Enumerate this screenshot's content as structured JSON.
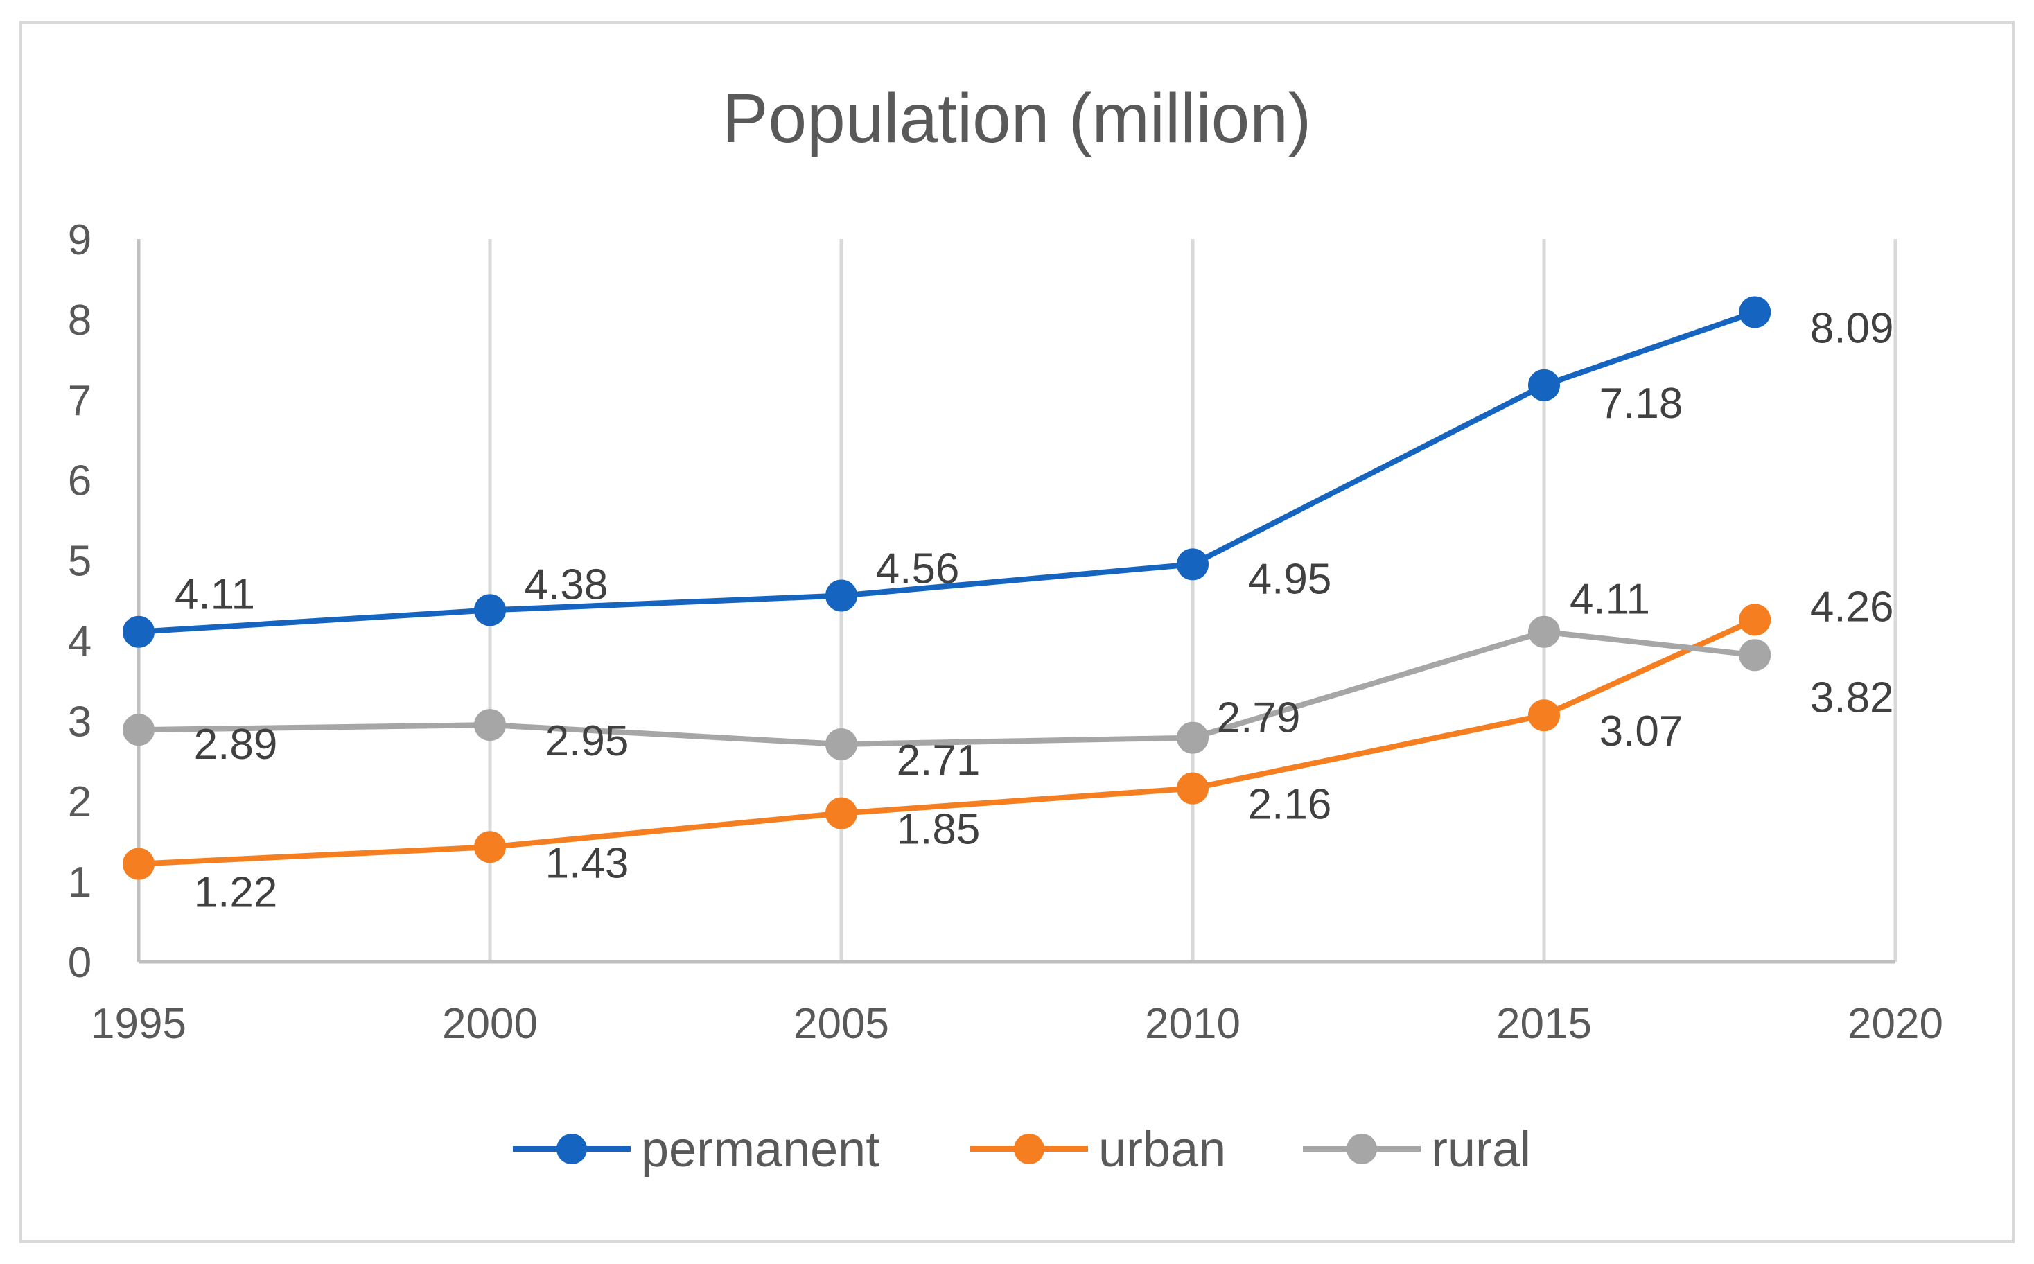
{
  "colors": {
    "permanent": "#1565C0",
    "urban": "#F57F20",
    "rural": "#A6A6A6"
  },
  "chart_data": {
    "type": "line",
    "title": "Population (million)",
    "xlabel": "",
    "ylabel": "",
    "xlim": [
      1995,
      2020
    ],
    "ylim": [
      0,
      9
    ],
    "x_ticks": [
      "1995",
      "2000",
      "2005",
      "2010",
      "2015",
      "2020"
    ],
    "y_ticks": [
      "0",
      "1",
      "2",
      "3",
      "4",
      "5",
      "6",
      "7",
      "8",
      "9"
    ],
    "x": [
      1995,
      2000,
      2005,
      2010,
      2015,
      2018
    ],
    "grid": "vertical",
    "legend": "bottom",
    "series": [
      {
        "name": "permanent",
        "values": [
          4.11,
          4.38,
          4.56,
          4.95,
          7.18,
          8.09
        ],
        "labels": [
          "4.11",
          "4.38",
          "4.56",
          "4.95",
          "7.18",
          "8.09"
        ]
      },
      {
        "name": "urban",
        "values": [
          1.22,
          1.43,
          1.85,
          2.16,
          3.07,
          4.26
        ],
        "labels": [
          "1.22",
          "1.43",
          "1.85",
          "2.16",
          "3.07",
          "4.26"
        ]
      },
      {
        "name": "rural",
        "values": [
          2.89,
          2.95,
          2.71,
          2.79,
          4.11,
          3.82
        ],
        "labels": [
          "2.89",
          "2.95",
          "2.71",
          "2.79",
          "4.11",
          "3.82"
        ]
      }
    ]
  }
}
